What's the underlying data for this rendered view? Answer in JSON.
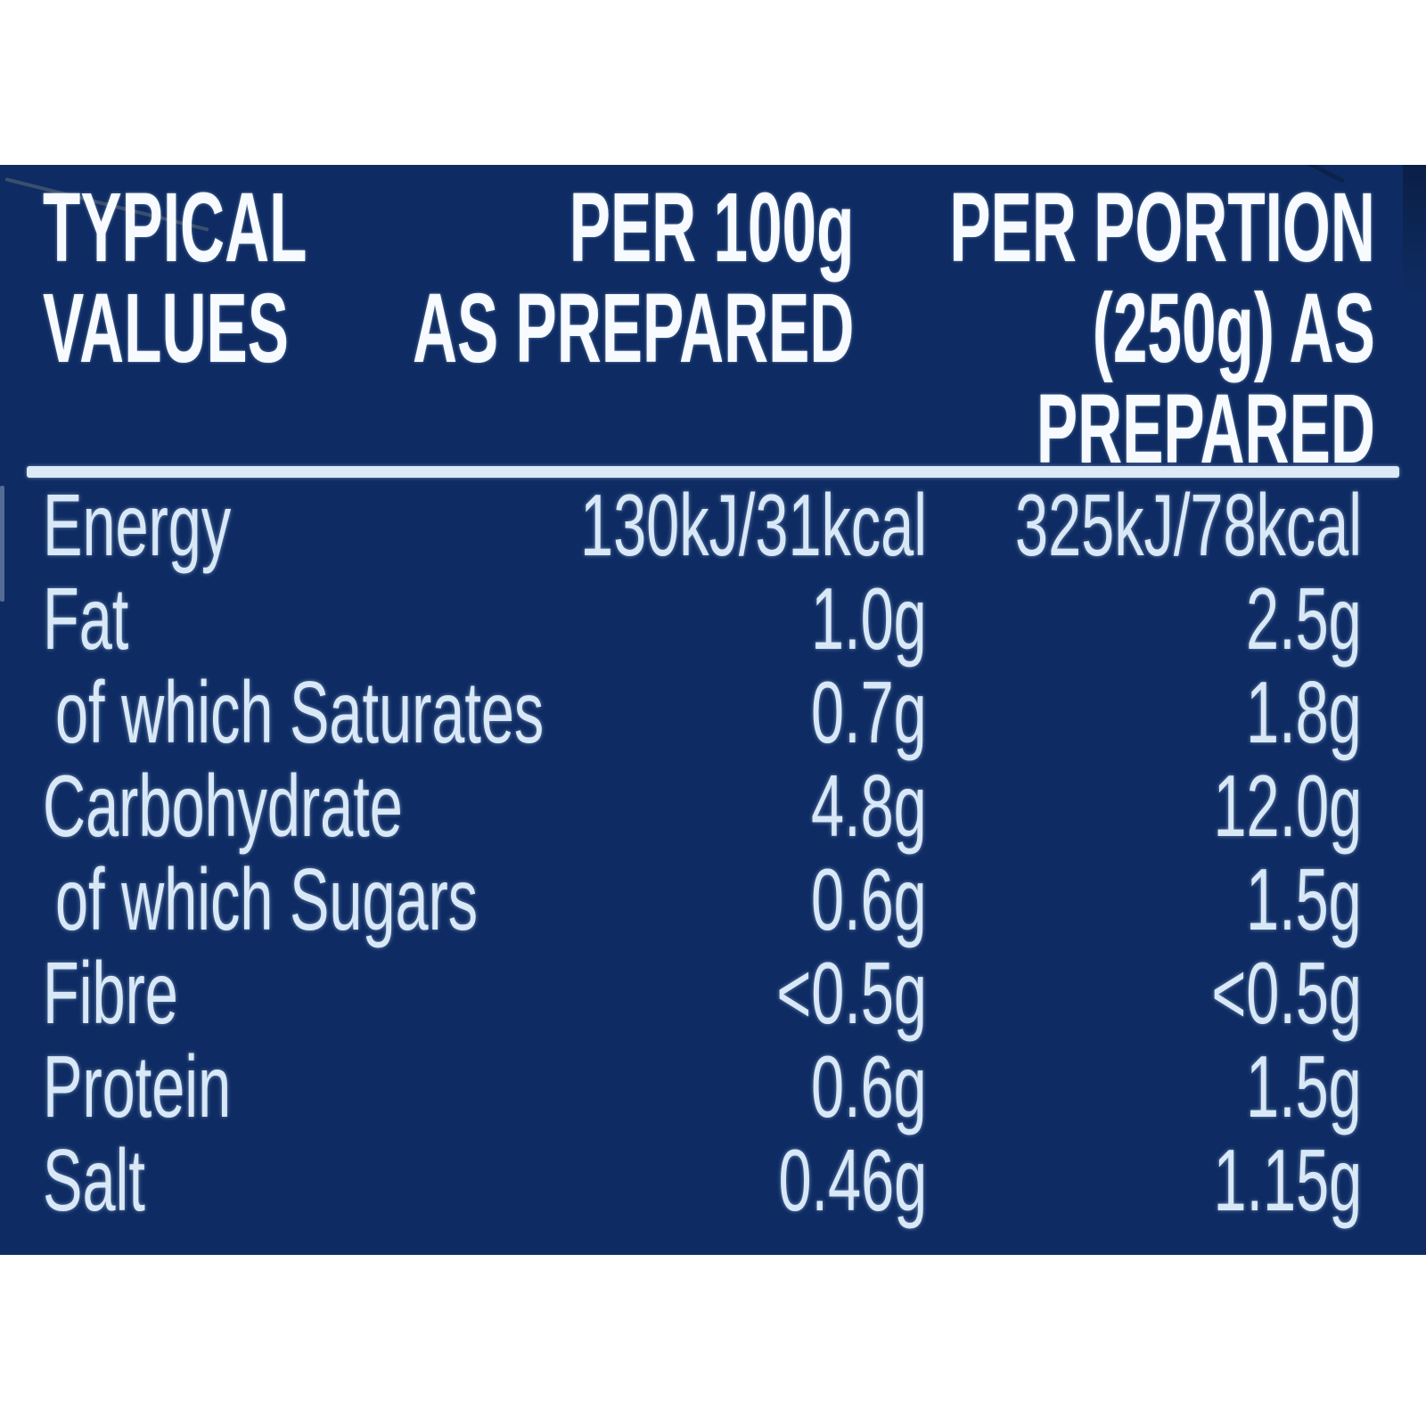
{
  "colors": {
    "page_background": "#ffffff",
    "panel_background": "#0e2c63",
    "header_text": "#f7fbff",
    "row_text": "#d9e8f7",
    "separator": "#dce9f6"
  },
  "table": {
    "header": {
      "col_label": "TYPICAL\nVALUES",
      "col_per100": "PER 100g\nAS PREPARED",
      "col_portion": "PER PORTION\n(250g) AS\nPREPARED"
    },
    "rows": [
      {
        "label": "Energy",
        "per100": "130kJ/31kcal",
        "portion": "325kJ/78kcal"
      },
      {
        "label": "Fat",
        "per100": "1.0g",
        "portion": "2.5g"
      },
      {
        "label": "of which Saturates",
        "per100": "0.7g",
        "portion": "1.8g"
      },
      {
        "label": "Carbohydrate",
        "per100": "4.8g",
        "portion": "12.0g"
      },
      {
        "label": "of which Sugars",
        "per100": "0.6g",
        "portion": "1.5g"
      },
      {
        "label": "Fibre",
        "per100": "<0.5g",
        "portion": "<0.5g"
      },
      {
        "label": "Protein",
        "per100": "0.6g",
        "portion": "1.5g"
      },
      {
        "label": "Salt",
        "per100": "0.46g",
        "portion": "1.15g"
      }
    ]
  }
}
